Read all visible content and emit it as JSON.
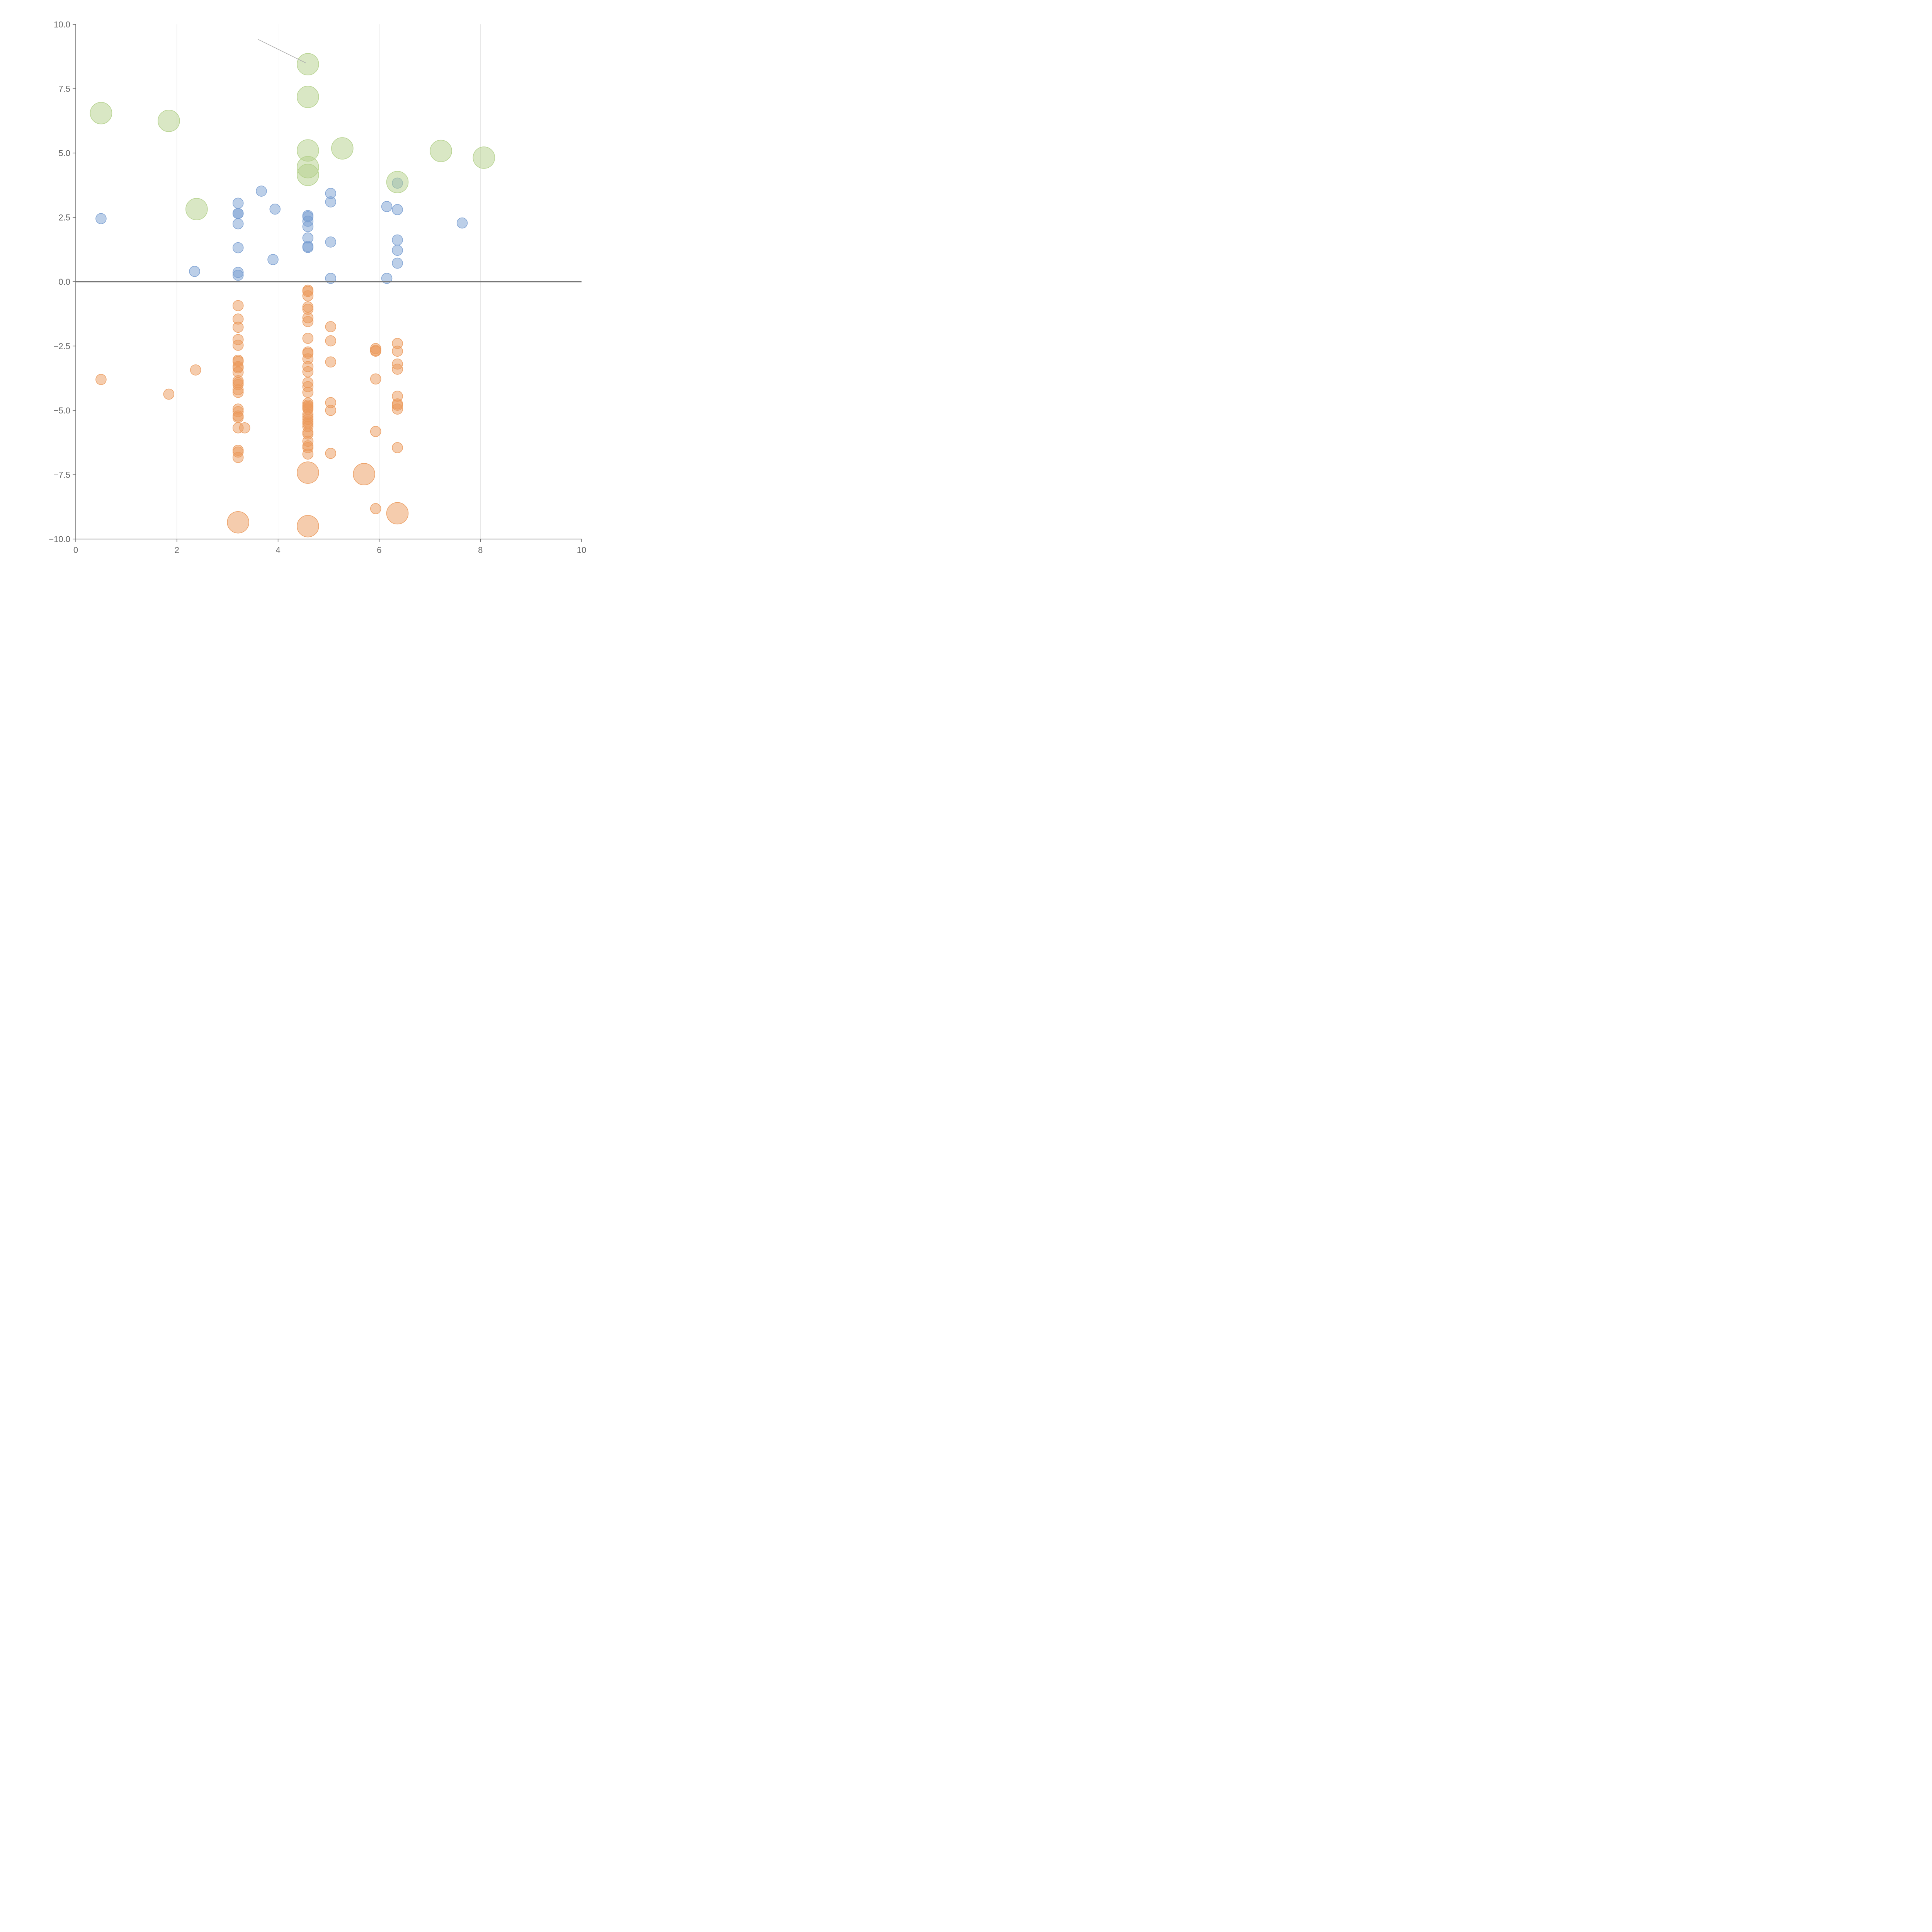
{
  "chart_data": {
    "type": "scatter",
    "title": "",
    "xlabel": "",
    "ylabel": "",
    "xlim": [
      0,
      10
    ],
    "ylim": [
      -10,
      10
    ],
    "x_ticks": [
      0,
      2,
      4,
      6,
      8,
      10
    ],
    "x_tick_labels": [
      "0",
      "2",
      "4",
      "6",
      "8",
      "10"
    ],
    "y_ticks": [
      10,
      7.5,
      5,
      2.5,
      0,
      -2.5,
      -5,
      -7.5,
      -10
    ],
    "y_tick_labels": [
      "10.0",
      "7.5",
      "5.0",
      "2.5",
      "0.0",
      "−2.5",
      "−5.0",
      "−7.5",
      "−10.0"
    ],
    "grid": "vertical",
    "zero_line": true,
    "colors": {
      "blue": "#7a9fd1",
      "orange": "#eb9a5c",
      "green": "#b3d08a",
      "axis": "#666666",
      "grid": "#dddddd"
    },
    "series": [
      {
        "name": "blue",
        "size": "small",
        "points": [
          [
            0.5,
            2.45
          ],
          [
            2.35,
            0.4
          ],
          [
            3.21,
            3.05
          ],
          [
            3.21,
            2.65
          ],
          [
            3.21,
            2.65
          ],
          [
            3.21,
            2.25
          ],
          [
            3.21,
            1.32
          ],
          [
            3.21,
            0.36
          ],
          [
            3.21,
            0.25
          ],
          [
            3.67,
            3.52
          ],
          [
            3.94,
            2.82
          ],
          [
            3.9,
            0.86
          ],
          [
            4.59,
            2.57
          ],
          [
            4.59,
            2.52
          ],
          [
            4.59,
            2.35
          ],
          [
            4.59,
            2.14
          ],
          [
            4.59,
            1.7
          ],
          [
            4.59,
            1.37
          ],
          [
            4.59,
            1.33
          ],
          [
            5.04,
            3.43
          ],
          [
            5.04,
            3.1
          ],
          [
            5.04,
            1.54
          ],
          [
            5.04,
            0.13
          ],
          [
            6.15,
            2.92
          ],
          [
            6.15,
            0.13
          ],
          [
            6.36,
            3.83
          ],
          [
            6.36,
            2.8
          ],
          [
            6.36,
            1.62
          ],
          [
            6.36,
            1.22
          ],
          [
            6.36,
            0.72
          ],
          [
            7.64,
            2.28
          ]
        ]
      },
      {
        "name": "orange",
        "size": "small",
        "points": [
          [
            0.5,
            -3.8
          ],
          [
            1.84,
            -4.37
          ],
          [
            2.37,
            -3.43
          ],
          [
            3.21,
            -0.93
          ],
          [
            3.21,
            -1.45
          ],
          [
            3.21,
            -1.77
          ],
          [
            3.21,
            -2.25
          ],
          [
            3.21,
            -2.47
          ],
          [
            3.21,
            -3.05
          ],
          [
            3.21,
            -3.1
          ],
          [
            3.21,
            -3.3
          ],
          [
            3.21,
            -3.35
          ],
          [
            3.21,
            -3.52
          ],
          [
            3.21,
            -3.85
          ],
          [
            3.21,
            -3.93
          ],
          [
            3.21,
            -4.0
          ],
          [
            3.21,
            -4.2
          ],
          [
            3.21,
            -4.3
          ],
          [
            3.21,
            -4.95
          ],
          [
            3.21,
            -5.05
          ],
          [
            3.21,
            -5.22
          ],
          [
            3.21,
            -5.28
          ],
          [
            3.21,
            -5.68
          ],
          [
            3.34,
            -5.68
          ],
          [
            3.21,
            -6.55
          ],
          [
            3.21,
            -6.62
          ],
          [
            3.21,
            -6.83
          ],
          [
            4.59,
            -0.33
          ],
          [
            4.59,
            -0.38
          ],
          [
            4.59,
            -0.55
          ],
          [
            4.59,
            -0.98
          ],
          [
            4.59,
            -1.07
          ],
          [
            4.59,
            -1.4
          ],
          [
            4.59,
            -1.55
          ],
          [
            4.59,
            -2.2
          ],
          [
            4.59,
            -2.73
          ],
          [
            4.59,
            -2.78
          ],
          [
            4.59,
            -3.0
          ],
          [
            4.59,
            -3.3
          ],
          [
            4.59,
            -3.5
          ],
          [
            4.59,
            -3.92
          ],
          [
            4.59,
            -4.08
          ],
          [
            4.59,
            -4.3
          ],
          [
            4.59,
            -4.72
          ],
          [
            4.59,
            -4.8
          ],
          [
            4.59,
            -4.85
          ],
          [
            4.59,
            -4.9
          ],
          [
            4.59,
            -4.95
          ],
          [
            4.59,
            -5.15
          ],
          [
            4.59,
            -5.25
          ],
          [
            4.59,
            -5.35
          ],
          [
            4.59,
            -5.45
          ],
          [
            4.59,
            -5.52
          ],
          [
            4.59,
            -5.63
          ],
          [
            4.59,
            -5.85
          ],
          [
            4.59,
            -5.92
          ],
          [
            4.59,
            -6.2
          ],
          [
            4.59,
            -6.38
          ],
          [
            4.59,
            -6.45
          ],
          [
            4.59,
            -6.7
          ],
          [
            5.04,
            -1.75
          ],
          [
            5.04,
            -2.3
          ],
          [
            5.04,
            -3.12
          ],
          [
            5.04,
            -4.7
          ],
          [
            5.04,
            -5.0
          ],
          [
            5.04,
            -6.67
          ],
          [
            5.93,
            -2.6
          ],
          [
            5.93,
            -2.67
          ],
          [
            5.93,
            -2.7
          ],
          [
            5.93,
            -3.78
          ],
          [
            5.93,
            -5.82
          ],
          [
            5.93,
            -8.82
          ],
          [
            6.36,
            -2.4
          ],
          [
            6.36,
            -2.7
          ],
          [
            6.36,
            -3.2
          ],
          [
            6.36,
            -3.4
          ],
          [
            6.36,
            -4.45
          ],
          [
            6.36,
            -4.75
          ],
          [
            6.36,
            -4.8
          ],
          [
            6.36,
            -4.95
          ],
          [
            6.36,
            -6.45
          ]
        ]
      },
      {
        "name": "green",
        "size": "large",
        "points": [
          [
            0.5,
            6.55
          ],
          [
            1.84,
            6.25
          ],
          [
            2.39,
            2.82
          ],
          [
            4.59,
            8.45
          ],
          [
            4.59,
            7.18
          ],
          [
            4.59,
            5.1
          ],
          [
            4.59,
            4.45
          ],
          [
            4.59,
            4.15
          ],
          [
            5.27,
            5.18
          ],
          [
            6.36,
            3.87
          ],
          [
            7.22,
            5.08
          ],
          [
            8.07,
            4.82
          ]
        ]
      },
      {
        "name": "orange-large",
        "size": "large",
        "points": [
          [
            3.21,
            -9.35
          ],
          [
            4.59,
            -7.42
          ],
          [
            4.59,
            -9.5
          ],
          [
            5.7,
            -7.48
          ],
          [
            6.36,
            -9.0
          ]
        ]
      }
    ],
    "leader_line": {
      "from": [
        4.55,
        8.5
      ],
      "to": [
        3.6,
        9.42
      ]
    }
  }
}
